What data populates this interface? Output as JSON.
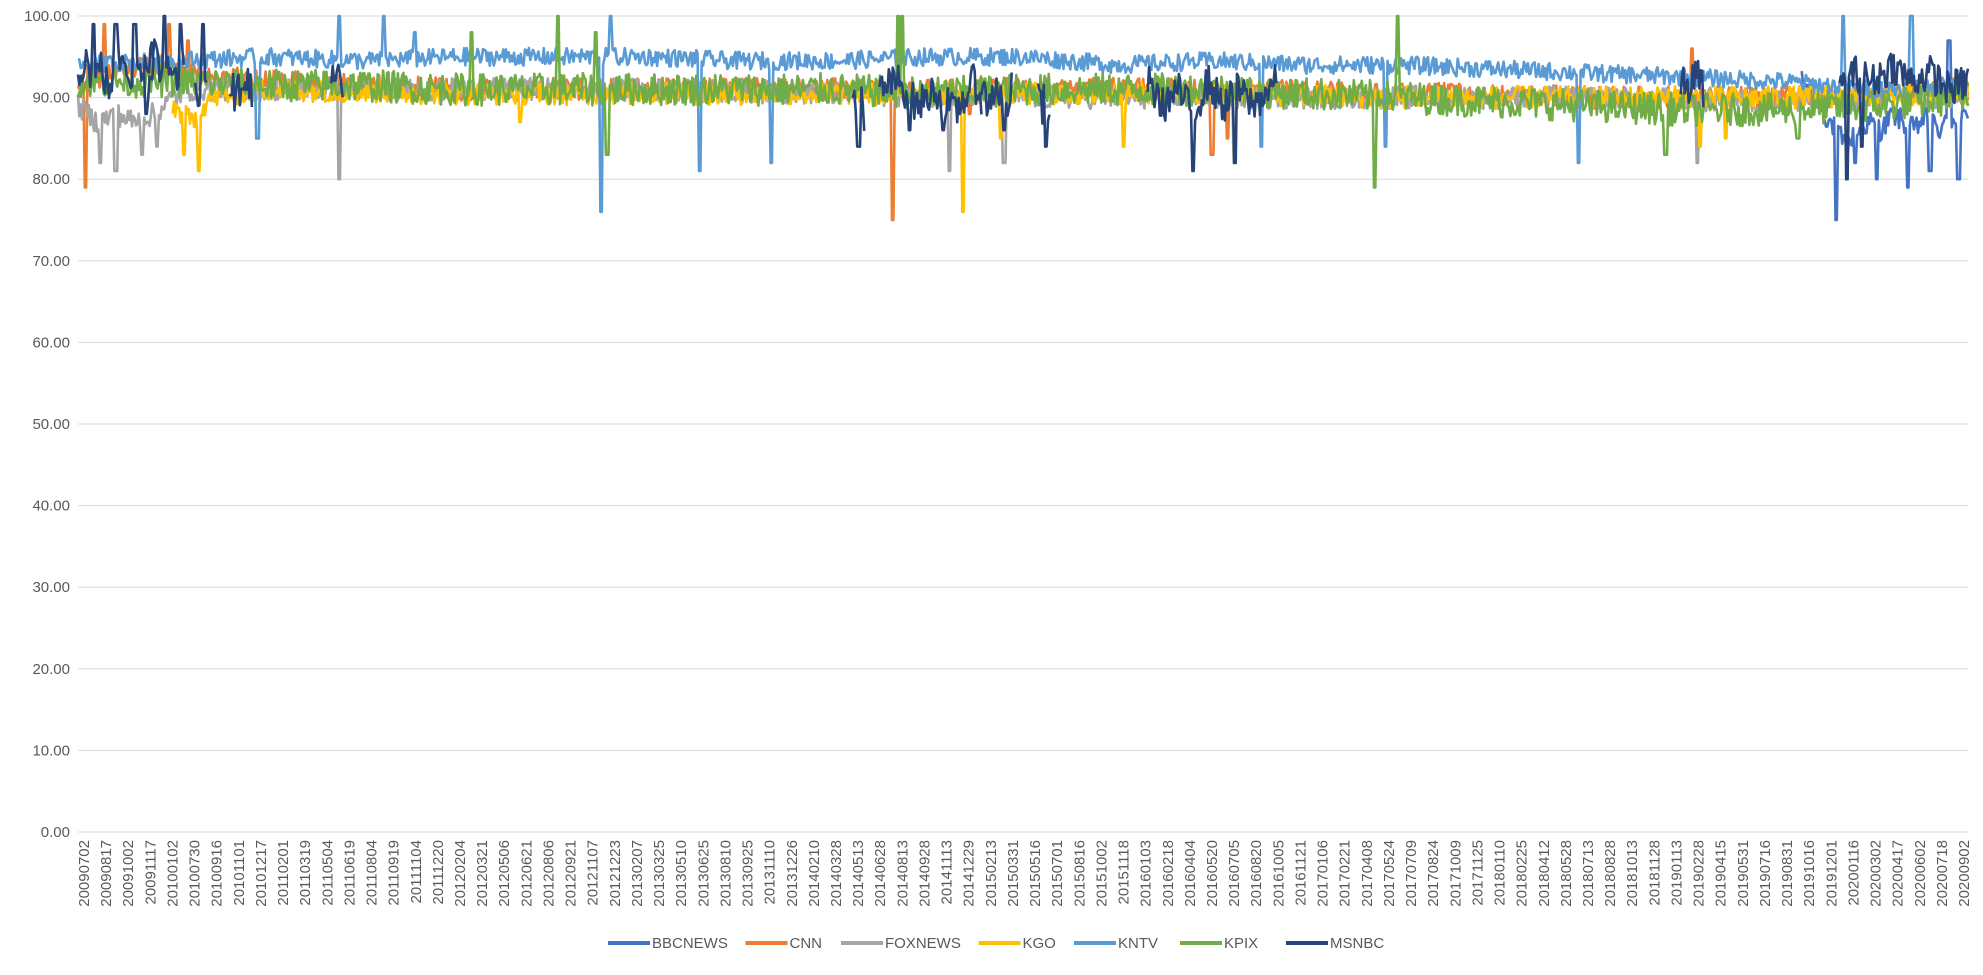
{
  "chart_data": {
    "type": "line",
    "title": "",
    "xlabel": "",
    "ylabel": "",
    "ylim": [
      0,
      100
    ],
    "grid": true,
    "legend_position": "bottom",
    "y_ticks": [
      "0.00",
      "10.00",
      "20.00",
      "30.00",
      "40.00",
      "50.00",
      "60.00",
      "70.00",
      "80.00",
      "90.00",
      "100.00"
    ],
    "x_tick_labels": [
      "20090702",
      "20090817",
      "20091002",
      "20091117",
      "20100102",
      "20100730",
      "20100916",
      "20101101",
      "20101217",
      "20110201",
      "20110319",
      "20110504",
      "20110619",
      "20110804",
      "20110919",
      "20111104",
      "20111220",
      "20120204",
      "20120321",
      "20120506",
      "20120621",
      "20120806",
      "20120921",
      "20121107",
      "20121223",
      "20130207",
      "20130325",
      "20130510",
      "20130625",
      "20130810",
      "20130925",
      "20131110",
      "20131226",
      "20140210",
      "20140328",
      "20140513",
      "20140628",
      "20140813",
      "20140928",
      "20141113",
      "20141229",
      "20150213",
      "20150331",
      "20150516",
      "20150701",
      "20150816",
      "20151002",
      "20151118",
      "20160103",
      "20160218",
      "20160404",
      "20160520",
      "20160705",
      "20160820",
      "20161005",
      "20161121",
      "20170106",
      "20170221",
      "20170408",
      "20170524",
      "20170709",
      "20170824",
      "20171009",
      "20171125",
      "20180110",
      "20180225",
      "20180412",
      "20180528",
      "20180713",
      "20180828",
      "20181013",
      "20181128",
      "20190113",
      "20190228",
      "20190415",
      "20190531",
      "20190716",
      "20190831",
      "20191016",
      "20191201",
      "20200116",
      "20200302",
      "20200417",
      "20200602",
      "20200718",
      "20200902"
    ],
    "series": [
      {
        "name": "BBCNEWS",
        "color": "#4472C4",
        "points": [
          [
            0.912,
            92
          ],
          [
            0.918,
            90.5
          ],
          [
            0.924,
            88
          ],
          [
            0.93,
            86
          ],
          [
            0.936,
            84
          ],
          [
            0.942,
            86
          ],
          [
            0.948,
            87
          ],
          [
            0.954,
            86
          ],
          [
            0.96,
            88
          ],
          [
            0.966,
            87
          ],
          [
            0.972,
            86
          ],
          [
            0.978,
            88
          ],
          [
            0.984,
            86
          ],
          [
            0.99,
            87
          ],
          [
            0.996,
            88
          ],
          [
            1.0,
            87
          ]
        ],
        "spikes": [
          [
            0.93,
            75
          ],
          [
            0.94,
            82
          ],
          [
            0.952,
            80
          ],
          [
            0.968,
            79
          ],
          [
            0.98,
            81
          ],
          [
            0.99,
            97
          ],
          [
            0.995,
            80
          ]
        ]
      },
      {
        "name": "CNN",
        "color": "#ED7D31",
        "points": [
          [
            0.0,
            92
          ],
          [
            0.02,
            93
          ],
          [
            0.04,
            94
          ],
          [
            0.06,
            93
          ],
          [
            0.1,
            92
          ],
          [
            0.2,
            91
          ],
          [
            0.3,
            91
          ],
          [
            0.4,
            91
          ],
          [
            0.5,
            91
          ],
          [
            0.6,
            91
          ],
          [
            0.7,
            90.5
          ],
          [
            0.8,
            90
          ],
          [
            0.9,
            90
          ],
          [
            1.0,
            91
          ]
        ],
        "spikes": [
          [
            0.004,
            79
          ],
          [
            0.014,
            99
          ],
          [
            0.048,
            99
          ],
          [
            0.058,
            97
          ],
          [
            0.431,
            75
          ],
          [
            0.472,
            88
          ],
          [
            0.6,
            83
          ],
          [
            0.608,
            85
          ],
          [
            0.854,
            96
          ]
        ]
      },
      {
        "name": "FOXNEWS",
        "color": "#A5A5A5",
        "points": [
          [
            0.0,
            89
          ],
          [
            0.01,
            87
          ],
          [
            0.02,
            88
          ],
          [
            0.03,
            87
          ],
          [
            0.04,
            88
          ],
          [
            0.05,
            90
          ],
          [
            0.06,
            91
          ],
          [
            0.1,
            91
          ],
          [
            0.2,
            91
          ],
          [
            0.3,
            91
          ],
          [
            0.4,
            90.5
          ],
          [
            0.5,
            90
          ],
          [
            0.6,
            90
          ],
          [
            0.7,
            90
          ],
          [
            0.8,
            90
          ],
          [
            0.9,
            89.5
          ],
          [
            1.0,
            90
          ]
        ],
        "spikes": [
          [
            0.012,
            82
          ],
          [
            0.02,
            81
          ],
          [
            0.034,
            83
          ],
          [
            0.042,
            84
          ],
          [
            0.138,
            80
          ],
          [
            0.461,
            81
          ],
          [
            0.49,
            82
          ],
          [
            0.612,
            82
          ],
          [
            0.857,
            82
          ]
        ]
      },
      {
        "name": "KGO",
        "color": "#FFC000",
        "points": [
          [
            0.05,
            89
          ],
          [
            0.06,
            87
          ],
          [
            0.07,
            90
          ],
          [
            0.1,
            91
          ],
          [
            0.2,
            90.5
          ],
          [
            0.3,
            90.5
          ],
          [
            0.4,
            90.5
          ],
          [
            0.5,
            90.5
          ],
          [
            0.6,
            90.5
          ],
          [
            0.7,
            90
          ],
          [
            0.8,
            90
          ],
          [
            0.9,
            90
          ],
          [
            1.0,
            90.5
          ]
        ],
        "spikes": [
          [
            0.056,
            83
          ],
          [
            0.064,
            81
          ],
          [
            0.234,
            87
          ],
          [
            0.468,
            76
          ],
          [
            0.488,
            85
          ],
          [
            0.553,
            84
          ],
          [
            0.858,
            84
          ],
          [
            0.872,
            85
          ]
        ]
      },
      {
        "name": "KNTV",
        "color": "#5B9BD5",
        "points": [
          [
            0.0,
            94
          ],
          [
            0.05,
            94.5
          ],
          [
            0.1,
            95
          ],
          [
            0.15,
            94.5
          ],
          [
            0.2,
            95
          ],
          [
            0.25,
            95
          ],
          [
            0.3,
            95
          ],
          [
            0.35,
            94.5
          ],
          [
            0.4,
            94.5
          ],
          [
            0.45,
            95
          ],
          [
            0.5,
            95
          ],
          [
            0.55,
            94
          ],
          [
            0.6,
            94.5
          ],
          [
            0.65,
            94
          ],
          [
            0.7,
            94
          ],
          [
            0.75,
            93.5
          ],
          [
            0.8,
            93
          ],
          [
            0.85,
            92.5
          ],
          [
            0.9,
            92
          ],
          [
            0.95,
            91
          ],
          [
            1.0,
            91.5
          ]
        ],
        "spikes": [
          [
            0.095,
            85
          ],
          [
            0.138,
            100
          ],
          [
            0.162,
            100
          ],
          [
            0.178,
            98
          ],
          [
            0.277,
            76
          ],
          [
            0.282,
            100
          ],
          [
            0.329,
            81
          ],
          [
            0.367,
            82
          ],
          [
            0.626,
            84
          ],
          [
            0.692,
            84
          ],
          [
            0.794,
            82
          ],
          [
            0.934,
            100
          ],
          [
            0.97,
            100
          ]
        ]
      },
      {
        "name": "KPIX",
        "color": "#70AD47",
        "points": [
          [
            0.0,
            92
          ],
          [
            0.05,
            92
          ],
          [
            0.1,
            91.5
          ],
          [
            0.15,
            91.5
          ],
          [
            0.2,
            91
          ],
          [
            0.25,
            91
          ],
          [
            0.3,
            91
          ],
          [
            0.35,
            91
          ],
          [
            0.4,
            91
          ],
          [
            0.45,
            90.5
          ],
          [
            0.5,
            91
          ],
          [
            0.55,
            91
          ],
          [
            0.6,
            91
          ],
          [
            0.65,
            90.5
          ],
          [
            0.7,
            90
          ],
          [
            0.75,
            89.5
          ],
          [
            0.8,
            89
          ],
          [
            0.85,
            88.5
          ],
          [
            0.9,
            88.5
          ],
          [
            0.95,
            89
          ],
          [
            1.0,
            90
          ]
        ],
        "spikes": [
          [
            0.208,
            98
          ],
          [
            0.254,
            100
          ],
          [
            0.274,
            98
          ],
          [
            0.28,
            83
          ],
          [
            0.434,
            100
          ],
          [
            0.436,
            100
          ],
          [
            0.686,
            79
          ],
          [
            0.698,
            100
          ],
          [
            0.84,
            83
          ],
          [
            0.91,
            85
          ]
        ]
      },
      {
        "name": "MSNBC",
        "color": "#264478",
        "segments": [
          {
            "points": [
              [
                0.0,
                93
              ],
              [
                0.004,
                95
              ],
              [
                0.008,
                92
              ],
              [
                0.012,
                94
              ],
              [
                0.016,
                91
              ],
              [
                0.02,
                93
              ],
              [
                0.024,
                96
              ],
              [
                0.028,
                92
              ],
              [
                0.032,
                94
              ],
              [
                0.036,
                91
              ],
              [
                0.04,
                94
              ]
            ],
            "spikes": [
              [
                0.008,
                99
              ],
              [
                0.02,
                99
              ],
              [
                0.03,
                99
              ],
              [
                0.036,
                88
              ]
            ]
          },
          {
            "points": [
              [
                0.034,
                94
              ],
              [
                0.04,
                96
              ],
              [
                0.044,
                93
              ],
              [
                0.048,
                95
              ],
              [
                0.052,
                92
              ],
              [
                0.056,
                94
              ]
            ],
            "spikes": [
              [
                0.046,
                100
              ],
              [
                0.054,
                99
              ]
            ]
          },
          {
            "points": [
              [
                0.062,
                93
              ],
              [
                0.064,
                90
              ],
              [
                0.066,
                95
              ],
              [
                0.068,
                92
              ]
            ],
            "spikes": [
              [
                0.066,
                99
              ]
            ]
          },
          {
            "points": [
              [
                0.08,
                92
              ],
              [
                0.084,
                90
              ],
              [
                0.088,
                93
              ],
              [
                0.092,
                91
              ]
            ],
            "spikes": []
          },
          {
            "points": [
              [
                0.134,
                93
              ],
              [
                0.136,
                91
              ],
              [
                0.138,
                94
              ],
              [
                0.14,
                90
              ]
            ],
            "spikes": []
          },
          {
            "points": [
              [
                0.41,
                92
              ],
              [
                0.412,
                88
              ],
              [
                0.414,
                91
              ],
              [
                0.416,
                86
              ]
            ],
            "spikes": [
              [
                0.413,
                84
              ]
            ]
          },
          {
            "points": [
              [
                0.424,
                91
              ],
              [
                0.434,
                92
              ],
              [
                0.444,
                89
              ],
              [
                0.454,
                91
              ],
              [
                0.464,
                88
              ],
              [
                0.474,
                92
              ],
              [
                0.478,
                90
              ]
            ],
            "spikes": [
              [
                0.44,
                86
              ],
              [
                0.458,
                86
              ]
            ]
          },
          {
            "points": [
              [
                0.478,
                91
              ],
              [
                0.482,
                89
              ],
              [
                0.486,
                92
              ],
              [
                0.49,
                88
              ],
              [
                0.494,
                91
              ]
            ],
            "spikes": [
              [
                0.49,
                86
              ]
            ]
          },
          {
            "points": [
              [
                0.508,
                92
              ],
              [
                0.51,
                88
              ],
              [
                0.512,
                91
              ],
              [
                0.514,
                86
              ]
            ],
            "spikes": [
              [
                0.512,
                84
              ]
            ]
          },
          {
            "points": [
              [
                0.566,
                92
              ],
              [
                0.574,
                89
              ],
              [
                0.582,
                91
              ],
              [
                0.59,
                88
              ],
              [
                0.598,
                92
              ],
              [
                0.606,
                89
              ],
              [
                0.614,
                91
              ],
              [
                0.622,
                89
              ],
              [
                0.63,
                91
              ],
              [
                0.634,
                92
              ]
            ],
            "spikes": [
              [
                0.59,
                81
              ],
              [
                0.612,
                82
              ]
            ]
          },
          {
            "points": [
              [
                0.848,
                92
              ],
              [
                0.852,
                91
              ],
              [
                0.856,
                93
              ],
              [
                0.86,
                91
              ]
            ],
            "spikes": []
          },
          {
            "points": [
              [
                0.932,
                91
              ],
              [
                0.94,
                93
              ],
              [
                0.95,
                92
              ],
              [
                0.96,
                94
              ],
              [
                0.97,
                92
              ],
              [
                0.98,
                93
              ],
              [
                0.99,
                91
              ],
              [
                1.0,
                92
              ]
            ],
            "spikes": [
              [
                0.936,
                80
              ],
              [
                0.944,
                84
              ]
            ]
          }
        ]
      }
    ]
  }
}
